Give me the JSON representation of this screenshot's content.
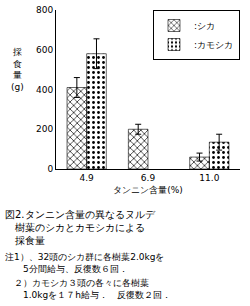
{
  "chart_data": {
    "type": "bar",
    "title": "図2.タンニン含量の異なるヌルデ\n　樹葉のシカとカモシカによる\n　採食量",
    "xlabel": "タンニン含量(%)",
    "ylabel": "採\n食\n量\n(g)",
    "categories": [
      "4.9",
      "6.9",
      "11.0"
    ],
    "series": [
      {
        "name": ":シカ",
        "color": "#555555",
        "values": [
          410,
          200,
          60
        ],
        "errors": [
          50,
          25,
          20
        ]
      },
      {
        "name": ":カモシカ",
        "color": "#cccccc",
        "values": [
          580,
          null,
          135
        ],
        "errors": [
          75,
          null,
          40
        ]
      }
    ],
    "ylim": [
      0,
      800
    ],
    "yticks": [
      0,
      200,
      400,
      600,
      800
    ],
    "grid": false,
    "legend": "upper right",
    "annotations": [
      "注1）、32頭のシカ群に各樹葉2.0kgを\n　　5分間給与、反復数６回．",
      "　２）カモシカ３頭の各々に各樹葉\n　　1.0kgを１７h給与．　反復数２回．"
    ]
  }
}
